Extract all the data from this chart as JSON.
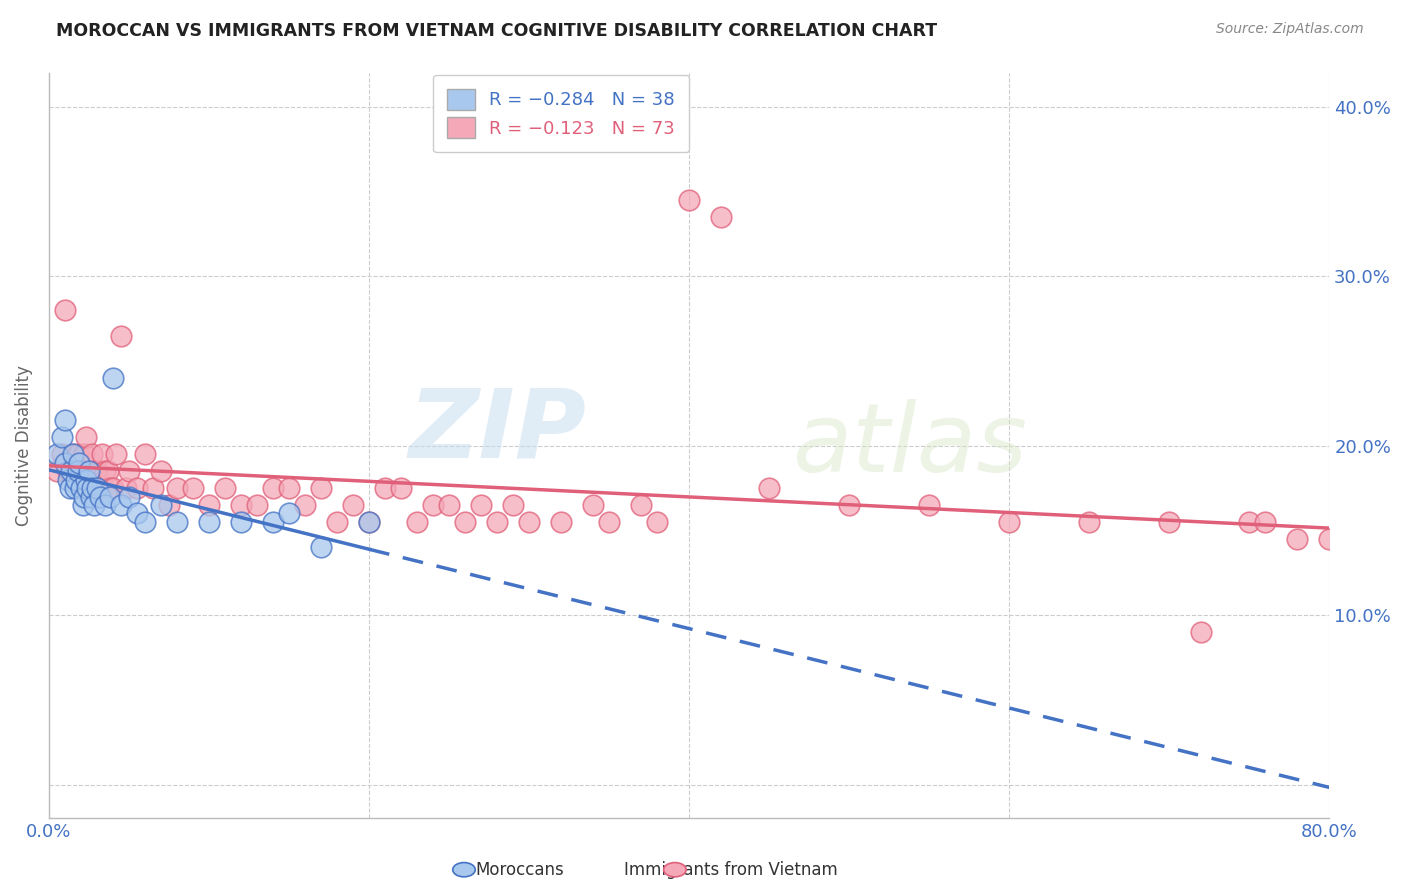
{
  "title": "MOROCCAN VS IMMIGRANTS FROM VIETNAM COGNITIVE DISABILITY CORRELATION CHART",
  "source": "Source: ZipAtlas.com",
  "ylabel": "Cognitive Disability",
  "xlim": [
    0.0,
    0.8
  ],
  "ylim": [
    -0.02,
    0.42
  ],
  "yticks": [
    0.0,
    0.1,
    0.2,
    0.3,
    0.4
  ],
  "ytick_labels": [
    "",
    "10.0%",
    "20.0%",
    "30.0%",
    "40.0%"
  ],
  "xticks": [
    0.0,
    0.2,
    0.4,
    0.6,
    0.8
  ],
  "xtick_labels": [
    "0.0%",
    "",
    "",
    "",
    "80.0%"
  ],
  "legend_blue_r": "R = -0.284",
  "legend_blue_n": "N = 38",
  "legend_pink_r": "R = -0.123",
  "legend_pink_n": "N = 73",
  "blue_color": "#A8C8EE",
  "pink_color": "#F4A8B8",
  "trendline_blue": "#4472C4",
  "trendline_pink": "#E0607A",
  "blue_scatter_x": [
    0.005,
    0.008,
    0.01,
    0.01,
    0.012,
    0.013,
    0.014,
    0.015,
    0.016,
    0.017,
    0.018,
    0.019,
    0.02,
    0.021,
    0.022,
    0.023,
    0.024,
    0.025,
    0.026,
    0.027,
    0.028,
    0.03,
    0.032,
    0.035,
    0.038,
    0.04,
    0.045,
    0.05,
    0.055,
    0.06,
    0.07,
    0.08,
    0.1,
    0.12,
    0.14,
    0.15,
    0.17,
    0.2
  ],
  "blue_scatter_y": [
    0.195,
    0.205,
    0.19,
    0.215,
    0.18,
    0.175,
    0.185,
    0.195,
    0.175,
    0.18,
    0.185,
    0.19,
    0.175,
    0.165,
    0.17,
    0.18,
    0.175,
    0.185,
    0.17,
    0.175,
    0.165,
    0.175,
    0.17,
    0.165,
    0.17,
    0.24,
    0.165,
    0.17,
    0.16,
    0.155,
    0.165,
    0.155,
    0.155,
    0.155,
    0.155,
    0.16,
    0.14,
    0.155
  ],
  "pink_scatter_x": [
    0.005,
    0.008,
    0.01,
    0.012,
    0.014,
    0.015,
    0.016,
    0.018,
    0.02,
    0.021,
    0.022,
    0.023,
    0.024,
    0.025,
    0.027,
    0.028,
    0.03,
    0.032,
    0.033,
    0.035,
    0.037,
    0.038,
    0.04,
    0.042,
    0.045,
    0.048,
    0.05,
    0.055,
    0.06,
    0.065,
    0.07,
    0.075,
    0.08,
    0.09,
    0.1,
    0.11,
    0.12,
    0.13,
    0.14,
    0.15,
    0.16,
    0.17,
    0.18,
    0.19,
    0.2,
    0.21,
    0.22,
    0.23,
    0.24,
    0.25,
    0.26,
    0.27,
    0.28,
    0.29,
    0.3,
    0.32,
    0.34,
    0.35,
    0.37,
    0.38,
    0.4,
    0.42,
    0.45,
    0.5,
    0.55,
    0.6,
    0.65,
    0.7,
    0.72,
    0.75,
    0.76,
    0.78,
    0.8
  ],
  "pink_scatter_y": [
    0.185,
    0.195,
    0.28,
    0.185,
    0.185,
    0.195,
    0.185,
    0.195,
    0.175,
    0.185,
    0.195,
    0.205,
    0.175,
    0.185,
    0.195,
    0.175,
    0.185,
    0.175,
    0.195,
    0.185,
    0.185,
    0.175,
    0.175,
    0.195,
    0.265,
    0.175,
    0.185,
    0.175,
    0.195,
    0.175,
    0.185,
    0.165,
    0.175,
    0.175,
    0.165,
    0.175,
    0.165,
    0.165,
    0.175,
    0.175,
    0.165,
    0.175,
    0.155,
    0.165,
    0.155,
    0.175,
    0.175,
    0.155,
    0.165,
    0.165,
    0.155,
    0.165,
    0.155,
    0.165,
    0.155,
    0.155,
    0.165,
    0.155,
    0.165,
    0.155,
    0.345,
    0.335,
    0.175,
    0.165,
    0.165,
    0.155,
    0.155,
    0.155,
    0.09,
    0.155,
    0.155,
    0.145,
    0.145
  ],
  "watermark_zip": "ZIP",
  "watermark_atlas": "atlas",
  "background_color": "#FFFFFF",
  "grid_color": "#CCCCCC",
  "legend_text_color": "#4472C4",
  "title_color": "#222222",
  "axis_tick_color": "#4472C4",
  "ylabel_color": "#666666"
}
